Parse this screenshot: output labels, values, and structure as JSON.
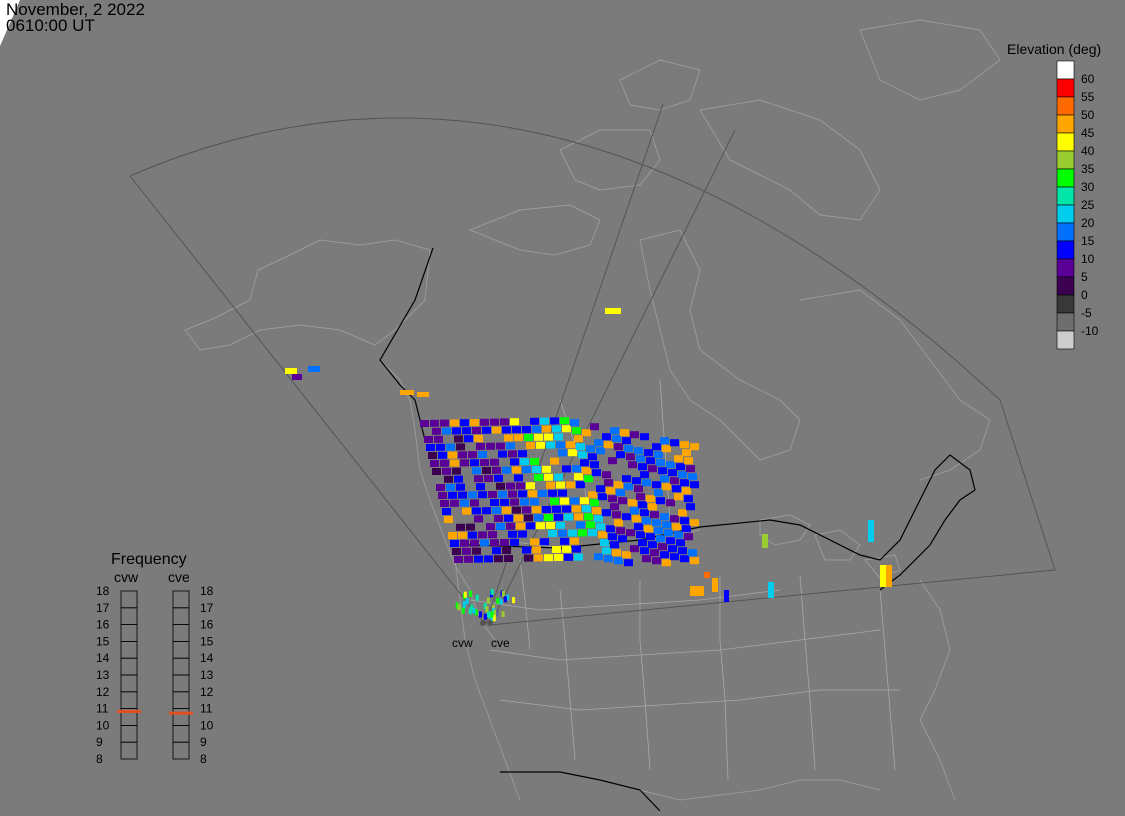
{
  "header": {
    "date": "November, 2 2022",
    "time": "0610:00 UT"
  },
  "legend": {
    "title": "Elevation (deg)",
    "levels": [
      {
        "label": "60",
        "color": "#ffffff"
      },
      {
        "label": "55",
        "color": "#ff0000"
      },
      {
        "label": "50",
        "color": "#ff6a00"
      },
      {
        "label": "45",
        "color": "#ffa500"
      },
      {
        "label": "40",
        "color": "#ffff00"
      },
      {
        "label": "35",
        "color": "#9acd32"
      },
      {
        "label": "30",
        "color": "#00ff00"
      },
      {
        "label": "25",
        "color": "#00e5a8"
      },
      {
        "label": "20",
        "color": "#00ccee"
      },
      {
        "label": "15",
        "color": "#0070ff"
      },
      {
        "label": "10",
        "color": "#0000ff"
      },
      {
        "label": "5",
        "color": "#5a0096"
      },
      {
        "label": "0",
        "color": "#3c0050"
      },
      {
        "label": "-5",
        "color": "#383838"
      },
      {
        "label": "-10",
        "color": "#6e6e6e"
      },
      {
        "label": "",
        "color": "#cccccc"
      }
    ]
  },
  "frequency": {
    "title": "Frequency",
    "radars": [
      {
        "name": "cvw",
        "value": 10.8
      },
      {
        "name": "cve",
        "value": 10.7
      }
    ],
    "ticks": [
      "18",
      "17",
      "16",
      "15",
      "14",
      "13",
      "12",
      "11",
      "10",
      "9",
      "8"
    ],
    "marker_color": "#e05020"
  },
  "sites": [
    {
      "name": "cvw"
    },
    {
      "name": "cve"
    }
  ]
}
